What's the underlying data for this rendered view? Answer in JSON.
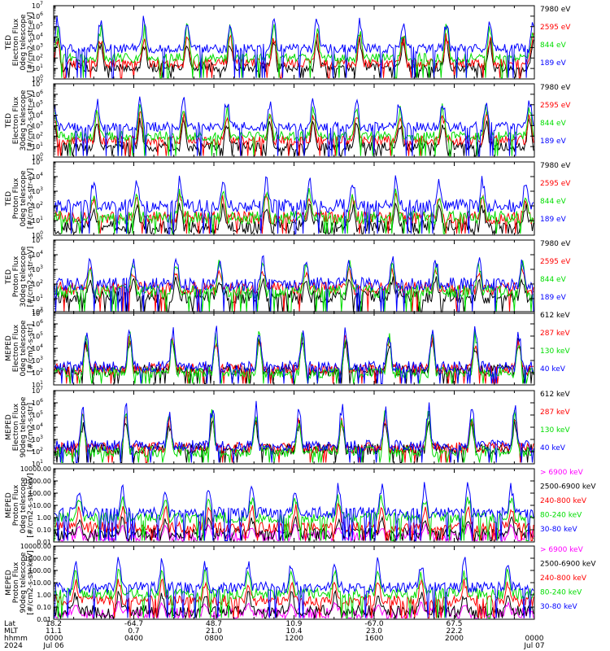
{
  "colors": {
    "blue": "#0000ff",
    "red": "#ff0000",
    "green": "#00dd00",
    "black": "#000000",
    "magenta": "#ff00ff",
    "axis": "#000000"
  },
  "chart_data": [
    {
      "type": "line",
      "panel": 1,
      "scale": "log",
      "ylabel_lines": [
        "TED",
        "Electron Flux",
        "0deg telescope",
        "[#/cm2-s-str-eV]"
      ],
      "ytick_style": "sci",
      "ylim_exp": [
        0,
        7
      ],
      "series": [
        {
          "name": "7980 eV",
          "color": "black",
          "base": 1.1,
          "peak": 4.2
        },
        {
          "name": "2595 eV",
          "color": "red",
          "base": 1.5,
          "peak": 4.6
        },
        {
          "name": "844 eV",
          "color": "green",
          "base": 2.0,
          "peak": 5.4
        },
        {
          "name": "189 eV",
          "color": "blue",
          "base": 2.9,
          "peak": 6.2
        }
      ]
    },
    {
      "type": "line",
      "panel": 2,
      "scale": "log",
      "ylabel_lines": [
        "TED",
        "Electron Flux",
        "30deg telescope",
        "[#/cm2-s-str-eV]"
      ],
      "ytick_style": "sci",
      "ylim_exp": [
        0,
        7
      ],
      "series": [
        {
          "name": "7980 eV",
          "color": "black",
          "base": 1.0,
          "peak": 4.0
        },
        {
          "name": "2595 eV",
          "color": "red",
          "base": 1.6,
          "peak": 4.5
        },
        {
          "name": "844 eV",
          "color": "green",
          "base": 2.0,
          "peak": 5.3
        },
        {
          "name": "189 eV",
          "color": "blue",
          "base": 2.9,
          "peak": 6.0
        }
      ]
    },
    {
      "type": "line",
      "panel": 3,
      "scale": "log",
      "ylabel_lines": [
        "TED",
        "Proton Flux",
        "0deg telescope",
        "[#/cm2-s-str-eV]"
      ],
      "ytick_style": "sci",
      "ylim_exp": [
        0,
        5
      ],
      "series": [
        {
          "name": "7980 eV",
          "color": "black",
          "base": 0.6,
          "peak": 2.3
        },
        {
          "name": "2595 eV",
          "color": "red",
          "base": 1.2,
          "peak": 3.0
        },
        {
          "name": "844 eV",
          "color": "green",
          "base": 1.2,
          "peak": 3.3
        },
        {
          "name": "189 eV",
          "color": "blue",
          "base": 2.0,
          "peak": 4.2
        }
      ]
    },
    {
      "type": "line",
      "panel": 4,
      "scale": "log",
      "ylabel_lines": [
        "TED",
        "Proton Flux",
        "30deg telescope",
        "[#/cm2-s-str-eV]"
      ],
      "ytick_style": "sci",
      "ylim_exp": [
        0,
        5
      ],
      "series": [
        {
          "name": "7980 eV",
          "color": "black",
          "base": 1.1,
          "peak": 2.6
        },
        {
          "name": "2595 eV",
          "color": "red",
          "base": 1.7,
          "peak": 3.2
        },
        {
          "name": "844 eV",
          "color": "green",
          "base": 1.5,
          "peak": 3.8
        },
        {
          "name": "189 eV",
          "color": "blue",
          "base": 2.0,
          "peak": 4.0
        }
      ]
    },
    {
      "type": "line",
      "panel": 5,
      "scale": "log",
      "ylabel_lines": [
        "MEPED",
        "Electron Flux",
        "0deg telescope",
        "[#/cm2-s-str]"
      ],
      "ytick_style": "sci",
      "ylim_exp": [
        1,
        7
      ],
      "series": [
        {
          "name": "612 keV",
          "color": "black",
          "base": 2.2,
          "peak": 5.0
        },
        {
          "name": "287 keV",
          "color": "red",
          "base": 2.3,
          "peak": 5.4
        },
        {
          "name": "130 keV",
          "color": "green",
          "base": 2.0,
          "peak": 5.6
        },
        {
          "name": "40 keV",
          "color": "blue",
          "base": 2.5,
          "peak": 6.0
        }
      ]
    },
    {
      "type": "line",
      "panel": 6,
      "scale": "log",
      "ylabel_lines": [
        "MEPED",
        "Electron Flux",
        "90deg telescope",
        "[#/cm2-s-str]"
      ],
      "ytick_style": "sci",
      "ylim_exp": [
        1,
        7
      ],
      "series": [
        {
          "name": "612 keV",
          "color": "black",
          "base": 2.2,
          "peak": 4.8
        },
        {
          "name": "287 keV",
          "color": "red",
          "base": 2.3,
          "peak": 5.4
        },
        {
          "name": "130 keV",
          "color": "green",
          "base": 2.0,
          "peak": 5.6
        },
        {
          "name": "40 keV",
          "color": "blue",
          "base": 2.5,
          "peak": 6.3
        }
      ]
    },
    {
      "type": "line",
      "panel": 7,
      "scale": "log",
      "ylabel_lines": [
        "MEPED",
        "Proton Flux",
        "0deg telescope",
        "[#/cm2-s-str-keV]"
      ],
      "ytick_style": "dec",
      "ylim_exp": [
        -2,
        4
      ],
      "yticks": [
        "0.01",
        "0.10",
        "1.00",
        "10.00",
        "100.00",
        "1000.00",
        "10000.00"
      ],
      "series": [
        {
          "name": "> 6900 keV",
          "color": "magenta",
          "base": -1.5,
          "peak": -0.5
        },
        {
          "name": "2500-6900 keV",
          "color": "black",
          "base": -1.3,
          "peak": 0.2
        },
        {
          "name": "240-800 keV",
          "color": "red",
          "base": -0.8,
          "peak": 1.2
        },
        {
          "name": "80-240 keV",
          "color": "green",
          "base": 0.0,
          "peak": 2.0
        },
        {
          "name": "30-80 keV",
          "color": "blue",
          "base": 0.4,
          "peak": 3.0
        }
      ]
    },
    {
      "type": "line",
      "panel": 8,
      "scale": "log",
      "ylabel_lines": [
        "MEPED",
        "Proton Flux",
        "90deg telescope",
        "[#/cm2-s-str-keV]"
      ],
      "ytick_style": "dec",
      "ylim_exp": [
        -2,
        4
      ],
      "yticks": [
        "0.01",
        "0.10",
        "1.00",
        "10.00",
        "100.00",
        "1000.00",
        "10000.00"
      ],
      "series": [
        {
          "name": "> 6900 keV",
          "color": "magenta",
          "base": -1.5,
          "peak": -0.5
        },
        {
          "name": "2500-6900 keV",
          "color": "black",
          "base": -1.3,
          "peak": 0.4
        },
        {
          "name": "240-800 keV",
          "color": "red",
          "base": -0.5,
          "peak": 1.4
        },
        {
          "name": "80-240 keV",
          "color": "green",
          "base": 0.1,
          "peak": 2.2
        },
        {
          "name": "30-80 keV",
          "color": "blue",
          "base": 0.6,
          "peak": 3.2
        }
      ]
    }
  ],
  "xaxis": {
    "row_labels": [
      "Lat",
      "MLT",
      "hhmm",
      "2024"
    ],
    "ticks": [
      {
        "lat": "18.2",
        "mlt": "11.1",
        "hhmm": "0000",
        "date": "Jul 06"
      },
      {
        "lat": "-64.7",
        "mlt": "0.7",
        "hhmm": "0400",
        "date": ""
      },
      {
        "lat": "48.7",
        "mlt": "21.0",
        "hhmm": "0800",
        "date": ""
      },
      {
        "lat": "10.9",
        "mlt": "10.4",
        "hhmm": "1200",
        "date": ""
      },
      {
        "lat": "-67.0",
        "mlt": "23.0",
        "hhmm": "1600",
        "date": ""
      },
      {
        "lat": "67.5",
        "mlt": "22.2",
        "hhmm": "2000",
        "date": ""
      },
      {
        "lat": "",
        "mlt": "",
        "hhmm": "0000",
        "date": "Jul 07"
      }
    ]
  }
}
